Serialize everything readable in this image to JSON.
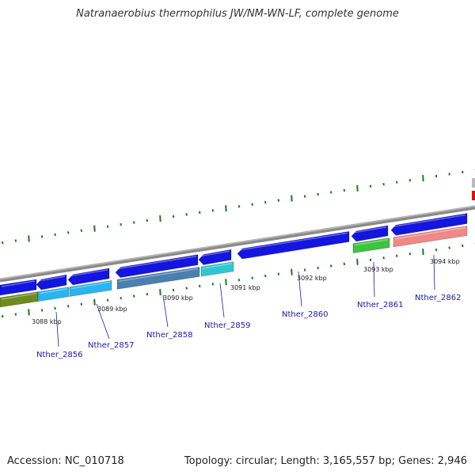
{
  "title": "Natranaerobius thermophilus JW/NM-WN-LF, complete genome",
  "footer": {
    "accession": "Accession: NC_010718",
    "topology": "Topology: circular; Length: 3,165,557 bp; Genes: 2,946"
  },
  "colors": {
    "backbone": "#8a8a8a",
    "gene_blue": "#1515e0",
    "gene_light_blue": "#2ab4f0",
    "gene_steel": "#4a7fb0",
    "gene_cyan": "#2ec8d4",
    "gene_green": "#3ec43e",
    "gene_olive": "#6e8c1e",
    "gene_pink": "#f08888",
    "tick_green": "#1a7a1a",
    "label_blue": "#1a1aa8"
  },
  "kbp_labels": [
    "3088 kbp",
    "3089 kbp",
    "3090 kbp",
    "3091 kbp",
    "3092 kbp",
    "3093 kbp",
    "3094 kbp"
  ],
  "genes": [
    "Nther_2856",
    "Nther_2857",
    "Nther_2858",
    "Nther_2859",
    "Nther_2860",
    "Nther_2861",
    "Nther_2862"
  ]
}
